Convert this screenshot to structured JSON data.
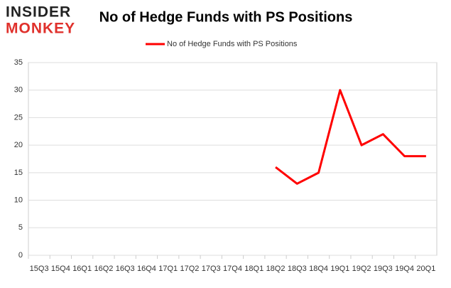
{
  "logo": {
    "line1": "INSIDER",
    "line2": "MONKEY"
  },
  "chart_data": {
    "type": "line",
    "title": "No of Hedge Funds with PS Positions",
    "categories": [
      "15Q3",
      "15Q4",
      "16Q1",
      "16Q2",
      "16Q3",
      "16Q4",
      "17Q1",
      "17Q2",
      "17Q3",
      "17Q4",
      "18Q1",
      "18Q2",
      "18Q3",
      "18Q4",
      "19Q1",
      "19Q2",
      "19Q3",
      "19Q4",
      "20Q1"
    ],
    "series": [
      {
        "name": "No of Hedge Funds with PS Positions",
        "color": "#ff0000",
        "values": [
          null,
          null,
          null,
          null,
          null,
          null,
          null,
          null,
          null,
          null,
          null,
          16,
          13,
          15,
          30,
          20,
          22,
          18,
          18
        ]
      }
    ],
    "ylim": [
      0,
      35
    ],
    "yticks": [
      0,
      5,
      10,
      15,
      20,
      25,
      30,
      35
    ],
    "grid": true,
    "legend": "top"
  }
}
